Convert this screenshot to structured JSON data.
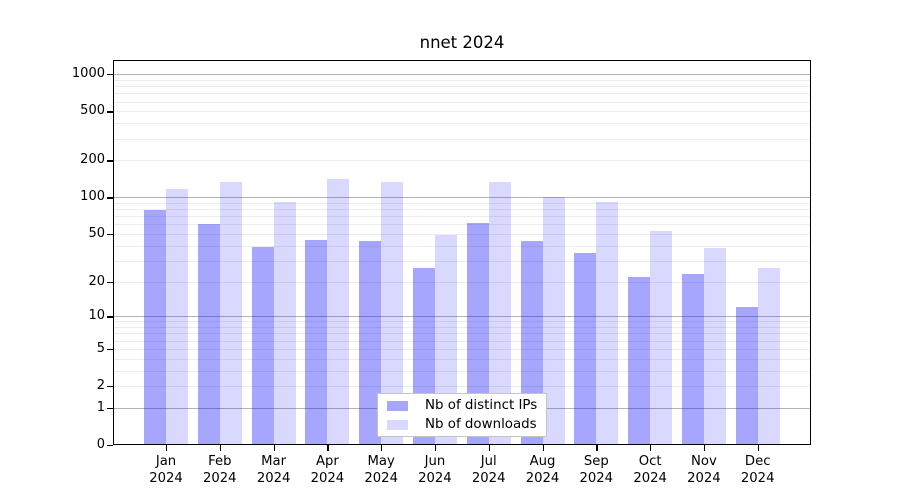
{
  "title": "nnet 2024",
  "chart_data": {
    "type": "bar",
    "title": "nnet 2024",
    "categories": [
      "Jan 2024",
      "Feb 2024",
      "Mar 2024",
      "Apr 2024",
      "May 2024",
      "Jun 2024",
      "Jul 2024",
      "Aug 2024",
      "Sep 2024",
      "Oct 2024",
      "Nov 2024",
      "Dec 2024"
    ],
    "series": [
      {
        "name": "Nb of distinct IPs",
        "color": "rgba(0,0,255,0.35)",
        "values": [
          79,
          61,
          39,
          45,
          44,
          26,
          62,
          44,
          35,
          22,
          23,
          12
        ]
      },
      {
        "name": "Nb of downloads",
        "color": "rgba(0,0,255,0.15)",
        "values": [
          117,
          133,
          92,
          140,
          133,
          49,
          133,
          101,
          92,
          53,
          38,
          26
        ]
      }
    ],
    "xlabel": "",
    "ylabel": "",
    "y_ticks": [
      0,
      1,
      2,
      5,
      10,
      20,
      50,
      100,
      200,
      500,
      1000
    ],
    "y_scale": "log10(value+1)",
    "ylim": [
      0,
      1300
    ],
    "grid": "horizontal",
    "grid_major_values": [
      1,
      10,
      100,
      1000
    ],
    "grid_minor_values": [
      2,
      3,
      4,
      5,
      6,
      7,
      8,
      9,
      20,
      30,
      40,
      50,
      60,
      70,
      80,
      90,
      200,
      300,
      400,
      500,
      600,
      700,
      800,
      900
    ],
    "legend_position": "inside-bottom-center",
    "colors": {
      "grid_major": "#b4b4b4",
      "grid_minor": "#ececec",
      "axis": "#000000",
      "background": "#ffffff"
    }
  }
}
